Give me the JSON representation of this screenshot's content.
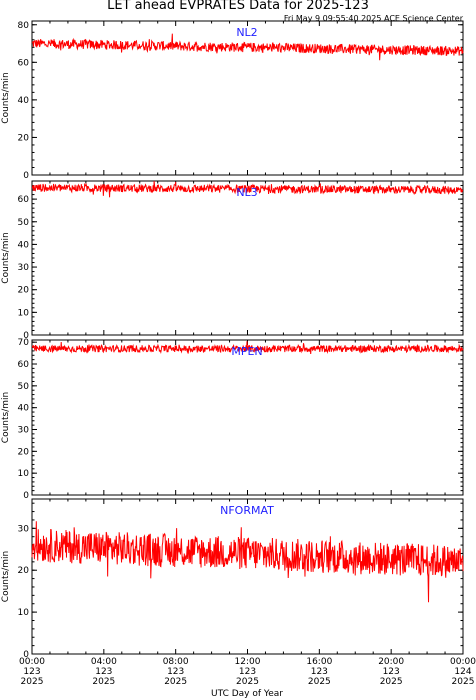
{
  "title": "LET ahead EVPRATES Data for 2025-123",
  "timestamp": "Fri May  9 09:55:40 2025 ACE Science Center",
  "xlabel": "UTC Day of Year",
  "colors": {
    "series": "#ff0000",
    "series_label": "#1f1fff",
    "axes": "#000000"
  },
  "chart_data": [
    {
      "type": "line",
      "series": [
        {
          "name": "NL2",
          "values_summary": {
            "start_level": 70,
            "end_level": 66,
            "noise": 1.6
          }
        }
      ],
      "ylabel": "Counts/min",
      "ylim": [
        0,
        82
      ],
      "yticks": [
        0,
        20,
        40,
        60,
        80
      ],
      "xlim": [
        0,
        24
      ],
      "grid": false
    },
    {
      "type": "line",
      "series": [
        {
          "name": "NL3",
          "values_summary": {
            "start_level": 65,
            "end_level": 64,
            "noise": 1.1
          }
        }
      ],
      "ylabel": "Counts/min",
      "ylim": [
        0,
        68
      ],
      "yticks": [
        0,
        10,
        20,
        30,
        40,
        50,
        60
      ],
      "xlim": [
        0,
        24
      ],
      "grid": false
    },
    {
      "type": "line",
      "series": [
        {
          "name": "MPEN",
          "values_summary": {
            "start_level": 67,
            "end_level": 67,
            "noise": 1.0
          }
        }
      ],
      "ylabel": "Counts/min",
      "ylim": [
        0,
        71
      ],
      "yticks": [
        0,
        10,
        20,
        30,
        40,
        50,
        60,
        70
      ],
      "xlim": [
        0,
        24
      ],
      "grid": false
    },
    {
      "type": "line",
      "series": [
        {
          "name": "NFORMAT",
          "values_summary": {
            "start_level": 26,
            "end_level": 22,
            "noise": 2.5
          }
        }
      ],
      "ylabel": "Counts/min",
      "ylim": [
        0,
        37
      ],
      "yticks": [
        0,
        10,
        20,
        30
      ],
      "xlim": [
        0,
        24
      ],
      "grid": false
    }
  ],
  "xticks": [
    {
      "value": 0,
      "time": "00:00",
      "day": "123",
      "year": "2025"
    },
    {
      "value": 4,
      "time": "04:00",
      "day": "123",
      "year": "2025"
    },
    {
      "value": 8,
      "time": "08:00",
      "day": "123",
      "year": "2025"
    },
    {
      "value": 12,
      "time": "12:00",
      "day": "123",
      "year": "2025"
    },
    {
      "value": 16,
      "time": "16:00",
      "day": "123",
      "year": "2025"
    },
    {
      "value": 20,
      "time": "20:00",
      "day": "123",
      "year": "2025"
    },
    {
      "value": 24,
      "time": "00:00",
      "day": "124",
      "year": "2025"
    }
  ]
}
